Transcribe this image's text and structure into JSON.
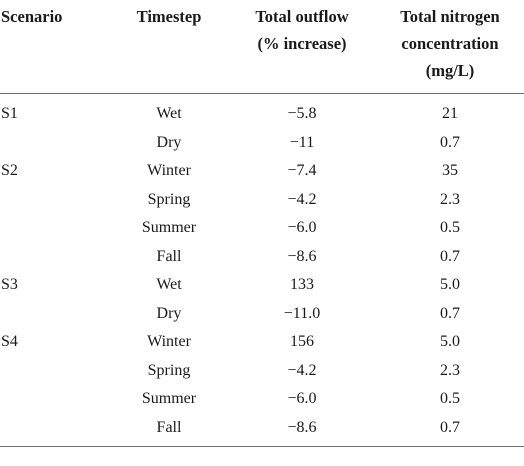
{
  "table": {
    "headers": {
      "scenario": "Scenario",
      "timestep": "Timestep",
      "outflow_line1": "Total outflow",
      "outflow_line2": "(% increase)",
      "nitrogen_line1": "Total nitrogen",
      "nitrogen_line2": "concentration",
      "nitrogen_line3": "(mg/L)"
    },
    "rows": [
      {
        "scenario": "S1",
        "timestep": "Wet",
        "outflow": "−5.8",
        "nitrogen": "21"
      },
      {
        "scenario": "",
        "timestep": "Dry",
        "outflow": "−11",
        "nitrogen": "0.7"
      },
      {
        "scenario": "S2",
        "timestep": "Winter",
        "outflow": "−7.4",
        "nitrogen": "35"
      },
      {
        "scenario": "",
        "timestep": "Spring",
        "outflow": "−4.2",
        "nitrogen": "2.3"
      },
      {
        "scenario": "",
        "timestep": "Summer",
        "outflow": "−6.0",
        "nitrogen": "0.5"
      },
      {
        "scenario": "",
        "timestep": "Fall",
        "outflow": "−8.6",
        "nitrogen": "0.7"
      },
      {
        "scenario": "S3",
        "timestep": "Wet",
        "outflow": "133",
        "nitrogen": "5.0"
      },
      {
        "scenario": "",
        "timestep": "Dry",
        "outflow": "−11.0",
        "nitrogen": "0.7"
      },
      {
        "scenario": "S4",
        "timestep": "Winter",
        "outflow": "156",
        "nitrogen": "5.0"
      },
      {
        "scenario": "",
        "timestep": "Spring",
        "outflow": "−4.2",
        "nitrogen": "2.3"
      },
      {
        "scenario": "",
        "timestep": "Summer",
        "outflow": "−6.0",
        "nitrogen": "0.5"
      },
      {
        "scenario": "",
        "timestep": "Fall",
        "outflow": "−8.6",
        "nitrogen": "0.7"
      }
    ]
  }
}
